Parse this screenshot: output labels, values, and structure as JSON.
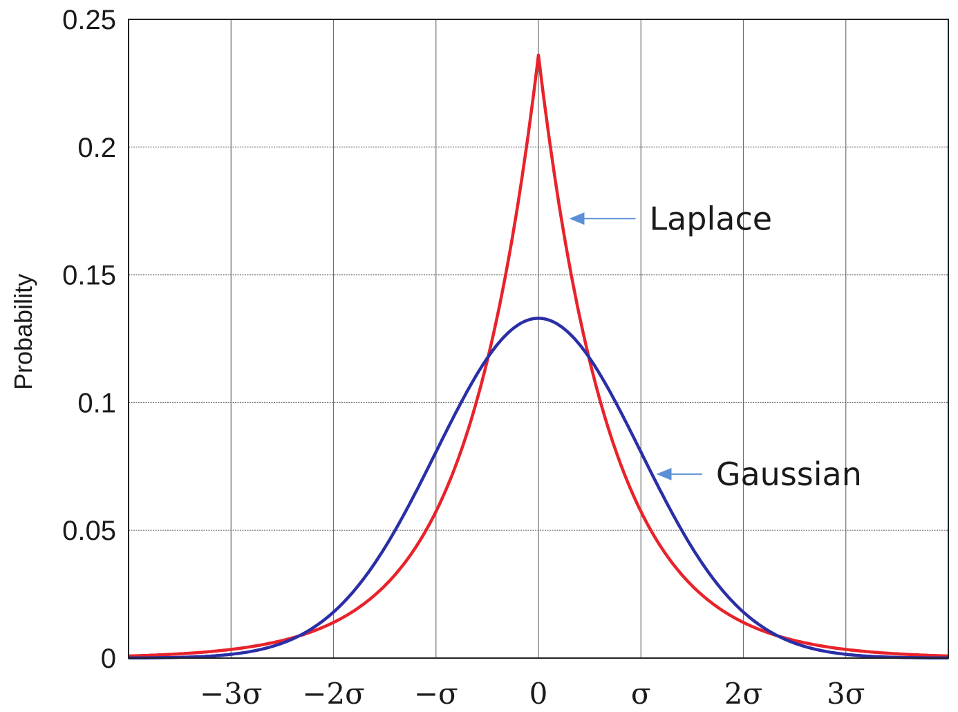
{
  "chart_data": {
    "type": "line",
    "title": "",
    "xlabel": "",
    "ylabel": "Probability",
    "xlim": [
      -4,
      4
    ],
    "ylim": [
      0,
      0.25
    ],
    "grid": true,
    "x_ticks": [
      {
        "value": -3,
        "label": "−3σ"
      },
      {
        "value": -2,
        "label": "−2σ"
      },
      {
        "value": -1,
        "label": "−σ"
      },
      {
        "value": 0,
        "label": "0"
      },
      {
        "value": 1,
        "label": "σ"
      },
      {
        "value": 2,
        "label": "2σ"
      },
      {
        "value": 3,
        "label": "3σ"
      }
    ],
    "y_ticks": [
      {
        "value": 0,
        "label": "0"
      },
      {
        "value": 0.05,
        "label": "0.05"
      },
      {
        "value": 0.1,
        "label": "0.1"
      },
      {
        "value": 0.15,
        "label": "0.15"
      },
      {
        "value": 0.2,
        "label": "0.2"
      },
      {
        "value": 0.25,
        "label": "0.25"
      }
    ],
    "series": [
      {
        "name": "Laplace",
        "color": "#e8232b",
        "x": [
          -4,
          -3.5,
          -3,
          -2.5,
          -2,
          -1.5,
          -1,
          -0.5,
          -0.25,
          0,
          0.25,
          0.5,
          1,
          1.5,
          2,
          2.5,
          3,
          3.5,
          4
        ],
        "y": [
          0.001,
          0.003,
          0.005,
          0.009,
          0.016,
          0.03,
          0.057,
          0.115,
          0.166,
          0.236,
          0.166,
          0.115,
          0.057,
          0.03,
          0.016,
          0.009,
          0.005,
          0.003,
          0.001
        ]
      },
      {
        "name": "Gaussian",
        "color": "#2b2fa6",
        "x": [
          -4,
          -3.5,
          -3,
          -2.5,
          -2,
          -1.5,
          -1,
          -0.5,
          0,
          0.5,
          1,
          1.5,
          2,
          2.5,
          3,
          3.5,
          4
        ],
        "y": [
          0.0,
          0.001,
          0.004,
          0.009,
          0.018,
          0.043,
          0.08,
          0.117,
          0.133,
          0.117,
          0.08,
          0.043,
          0.018,
          0.009,
          0.004,
          0.001,
          0.0
        ]
      }
    ],
    "annotations": [
      {
        "text": "Laplace",
        "series": "Laplace",
        "arrow_to": {
          "x": 0.3,
          "y": 0.172
        },
        "label_at": {
          "x": 1.15,
          "y": 0.172
        }
      },
      {
        "text": "Gaussian",
        "series": "Gaussian",
        "arrow_to": {
          "x": 1.15,
          "y": 0.072
        },
        "label_at": {
          "x": 1.8,
          "y": 0.072
        }
      }
    ],
    "arrow_color": "#5b8fd6"
  }
}
